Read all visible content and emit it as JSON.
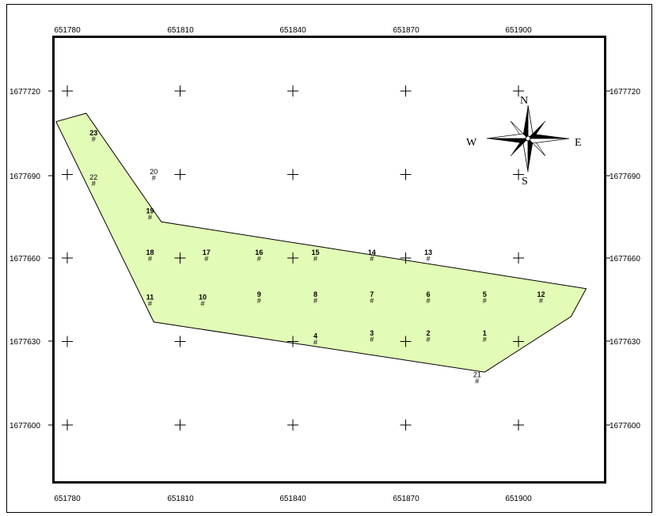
{
  "map": {
    "x_ticks": [
      "651780",
      "651810",
      "651840",
      "651870",
      "651900"
    ],
    "y_ticks": [
      "1677720",
      "1677690",
      "1677660",
      "1677630",
      "1677600"
    ],
    "polygon_fill": "#e2fbb6",
    "points": [
      {
        "id": "1",
        "e": 651891,
        "n": 1677631,
        "bold": true
      },
      {
        "id": "2",
        "e": 651876,
        "n": 1677631,
        "bold": true
      },
      {
        "id": "3",
        "e": 651861,
        "n": 1677631,
        "bold": true
      },
      {
        "id": "4",
        "e": 651846,
        "n": 1677630,
        "bold": true
      },
      {
        "id": "5",
        "e": 651891,
        "n": 1677645,
        "bold": true
      },
      {
        "id": "6",
        "e": 651876,
        "n": 1677645,
        "bold": true
      },
      {
        "id": "7",
        "e": 651861,
        "n": 1677645,
        "bold": true
      },
      {
        "id": "8",
        "e": 651846,
        "n": 1677645,
        "bold": true
      },
      {
        "id": "9",
        "e": 651831,
        "n": 1677645,
        "bold": true
      },
      {
        "id": "10",
        "e": 651816,
        "n": 1677644,
        "bold": true
      },
      {
        "id": "11",
        "e": 651802,
        "n": 1677644,
        "bold": true
      },
      {
        "id": "12",
        "e": 651906,
        "n": 1677645,
        "bold": true
      },
      {
        "id": "13",
        "e": 651876,
        "n": 1677660,
        "bold": true
      },
      {
        "id": "14",
        "e": 651861,
        "n": 1677660,
        "bold": true
      },
      {
        "id": "15",
        "e": 651846,
        "n": 1677660,
        "bold": true
      },
      {
        "id": "16",
        "e": 651831,
        "n": 1677660,
        "bold": true
      },
      {
        "id": "17",
        "e": 651817,
        "n": 1677660,
        "bold": true
      },
      {
        "id": "18",
        "e": 651802,
        "n": 1677660,
        "bold": true
      },
      {
        "id": "19",
        "e": 651802,
        "n": 1677675,
        "bold": true
      },
      {
        "id": "20",
        "e": 651803,
        "n": 1677689,
        "bold": false
      },
      {
        "id": "21",
        "e": 651889,
        "n": 1677616,
        "bold": false
      },
      {
        "id": "22",
        "e": 651787,
        "n": 1677687,
        "bold": false
      },
      {
        "id": "23",
        "e": 651787,
        "n": 1677703,
        "bold": true
      }
    ],
    "boundary": [
      [
        651777,
        1677709
      ],
      [
        651785,
        1677712
      ],
      [
        651805,
        1677673
      ],
      [
        651918,
        1677649
      ],
      [
        651914,
        1677639
      ],
      [
        651891,
        1677619
      ],
      [
        651803,
        1677637
      ]
    ],
    "compass": {
      "north": "N",
      "south": "S",
      "east": "E",
      "west": "W"
    }
  }
}
